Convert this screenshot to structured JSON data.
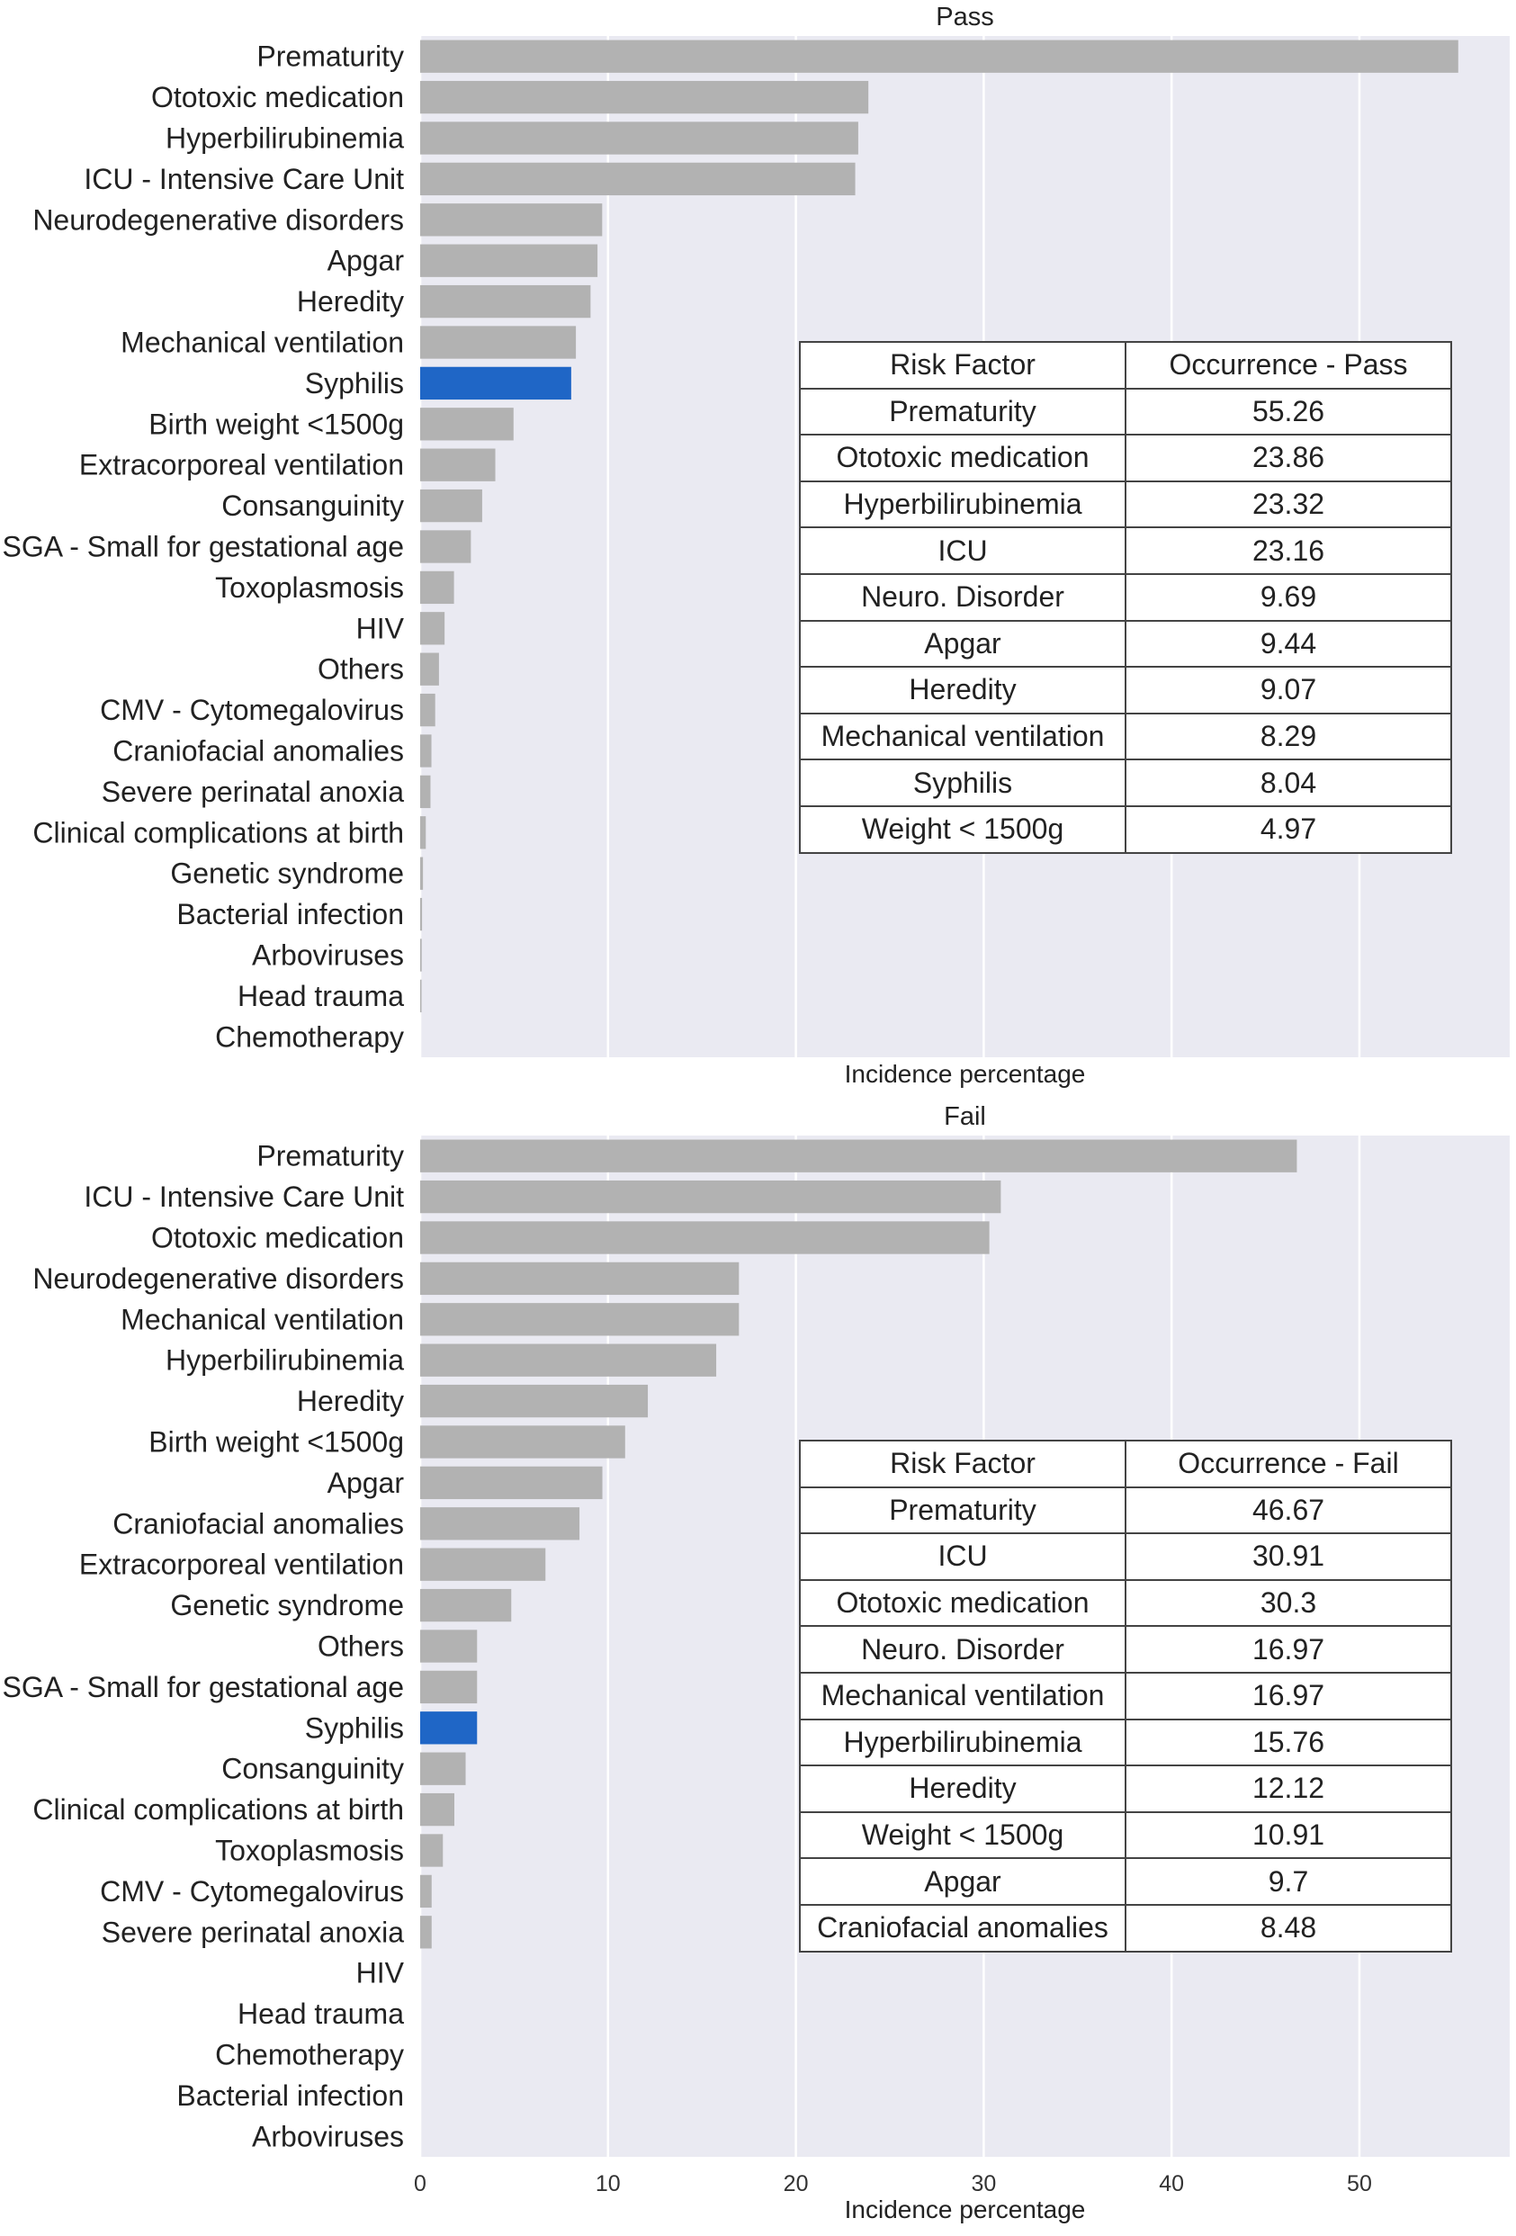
{
  "colors": {
    "bar": "#b2b2b2",
    "highlight": "#1f66c6",
    "plot_bg": "#eaeaf2",
    "grid": "#ffffff",
    "text": "#333333"
  },
  "chart_data": [
    {
      "type": "bar",
      "orientation": "horizontal",
      "title": "Pass",
      "xlabel": "Incidence percentage",
      "ylabel": "",
      "xlim": [
        0,
        58
      ],
      "xticks": [
        0,
        10,
        20,
        30,
        40,
        50
      ],
      "show_xtick_labels": false,
      "grid": true,
      "highlight_category": "Syphilis",
      "categories": [
        "Prematurity",
        "Ototoxic medication",
        "Hyperbilirubinemia",
        "ICU - Intensive Care Unit",
        "Neurodegenerative disorders",
        "Apgar",
        "Heredity",
        "Mechanical ventilation",
        "Syphilis",
        "Birth weight <1500g",
        "Extracorporeal ventilation",
        "Consanguinity",
        "SGA - Small for gestational age",
        "Toxoplasmosis",
        "HIV",
        "Others",
        "CMV - Cytomegalovirus",
        "Craniofacial anomalies",
        "Severe perinatal anoxia",
        "Clinical complications at birth",
        "Genetic syndrome",
        "Bacterial infection",
        "Arboviruses",
        "Head trauma",
        "Chemotherapy"
      ],
      "values": [
        55.26,
        23.86,
        23.32,
        23.16,
        9.69,
        9.44,
        9.07,
        8.29,
        8.04,
        4.97,
        4.0,
        3.3,
        2.7,
        1.8,
        1.3,
        1.0,
        0.8,
        0.6,
        0.55,
        0.3,
        0.15,
        0.1,
        0.08,
        0.05,
        0.0
      ]
    },
    {
      "type": "bar",
      "orientation": "horizontal",
      "title": "Fail",
      "xlabel": "Incidence percentage",
      "ylabel": "",
      "xlim": [
        0,
        58
      ],
      "xticks": [
        0,
        10,
        20,
        30,
        40,
        50
      ],
      "show_xtick_labels": true,
      "grid": true,
      "highlight_category": "Syphilis",
      "categories": [
        "Prematurity",
        "ICU - Intensive Care Unit",
        "Ototoxic medication",
        "Neurodegenerative disorders",
        "Mechanical ventilation",
        "Hyperbilirubinemia",
        "Heredity",
        "Birth weight <1500g",
        "Apgar",
        "Craniofacial anomalies",
        "Extracorporeal ventilation",
        "Genetic syndrome",
        "Others",
        "SGA - Small for gestational age",
        "Syphilis",
        "Consanguinity",
        "Clinical complications at birth",
        "Toxoplasmosis",
        "CMV - Cytomegalovirus",
        "Severe perinatal anoxia",
        "HIV",
        "Head trauma",
        "Chemotherapy",
        "Bacterial infection",
        "Arboviruses"
      ],
      "values": [
        46.67,
        30.91,
        30.3,
        16.97,
        16.97,
        15.76,
        12.12,
        10.91,
        9.7,
        8.48,
        6.67,
        4.85,
        3.03,
        3.03,
        3.03,
        2.42,
        1.82,
        1.21,
        0.61,
        0.61,
        0,
        0,
        0,
        0,
        0
      ]
    }
  ],
  "tables": {
    "pass": {
      "headers": [
        "Risk Factor",
        "Occurrence - Pass"
      ],
      "rows": [
        [
          "Prematurity",
          "55.26"
        ],
        [
          "Ototoxic medication",
          "23.86"
        ],
        [
          "Hyperbilirubinemia",
          "23.32"
        ],
        [
          "ICU",
          "23.16"
        ],
        [
          "Neuro. Disorder",
          "9.69"
        ],
        [
          "Apgar",
          "9.44"
        ],
        [
          "Heredity",
          "9.07"
        ],
        [
          "Mechanical ventilation",
          "8.29"
        ],
        [
          "Syphilis",
          "8.04"
        ],
        [
          "Weight < 1500g",
          "4.97"
        ]
      ]
    },
    "fail": {
      "headers": [
        "Risk Factor",
        "Occurrence - Fail"
      ],
      "rows": [
        [
          "Prematurity",
          "46.67"
        ],
        [
          "ICU",
          "30.91"
        ],
        [
          "Ototoxic medication",
          "30.3"
        ],
        [
          "Neuro. Disorder",
          "16.97"
        ],
        [
          "Mechanical ventilation",
          "16.97"
        ],
        [
          "Hyperbilirubinemia",
          "15.76"
        ],
        [
          "Heredity",
          "12.12"
        ],
        [
          "Weight < 1500g",
          "10.91"
        ],
        [
          "Apgar",
          "9.7"
        ],
        [
          "Craniofacial anomalies",
          "8.48"
        ]
      ]
    }
  }
}
